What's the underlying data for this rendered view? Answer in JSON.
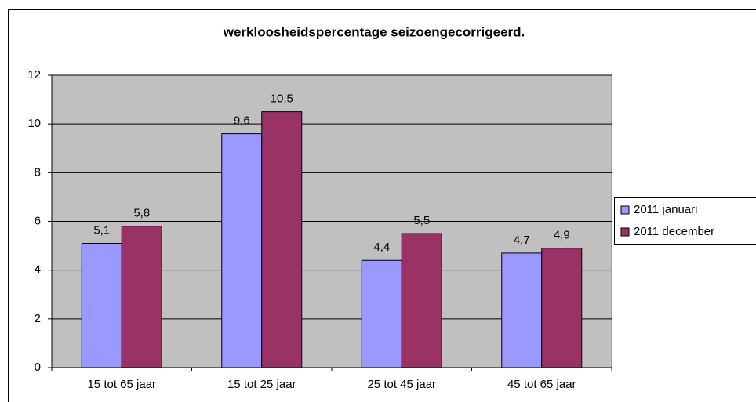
{
  "chart_data": {
    "type": "bar",
    "title": "werkloosheidspercentage seizoengecorrigeerd.",
    "categories": [
      "15 tot 65 jaar",
      "15 tot 25 jaar",
      "25 tot 45 jaar",
      "45 tot 65 jaar"
    ],
    "series": [
      {
        "name": "2011 januari",
        "color": "#9999ff",
        "values": [
          5.1,
          9.6,
          4.4,
          4.7
        ],
        "value_labels": [
          "5,1",
          "9,6",
          "4,4",
          "4,7"
        ]
      },
      {
        "name": "2011 december",
        "color": "#993366",
        "values": [
          5.8,
          10.5,
          5.5,
          4.9
        ],
        "value_labels": [
          "5,8",
          "10,5",
          "5,5",
          "4,9"
        ]
      }
    ],
    "ylim": [
      0,
      12
    ],
    "yticks": [
      0,
      2,
      4,
      6,
      8,
      10,
      12
    ],
    "grid": true,
    "legend": "right"
  }
}
